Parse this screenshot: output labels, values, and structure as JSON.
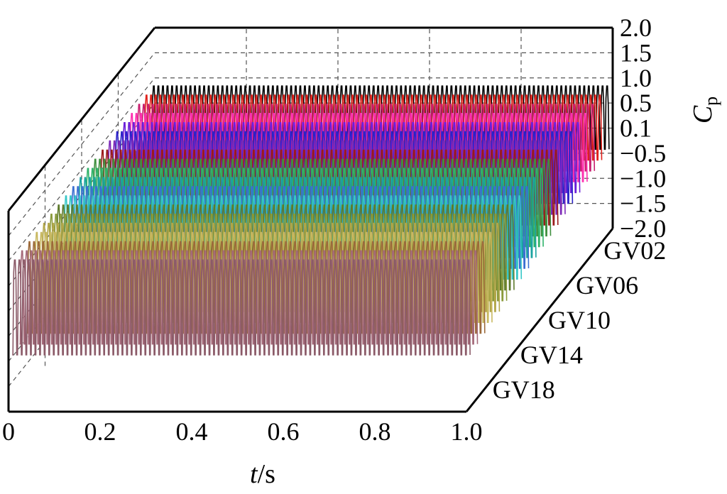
{
  "chart_data": {
    "type": "line",
    "title": "",
    "xlabel_italic": "t",
    "xlabel_unit": "/s",
    "zlabel_main": "C",
    "zlabel_sub": "p",
    "x_ticks": [
      "0",
      "0.2",
      "0.4",
      "0.6",
      "0.8",
      "1.0"
    ],
    "x_range": [
      0,
      1.0
    ],
    "z_ticks": [
      "2.0",
      "1.5",
      "1.0",
      "0.5",
      "0.1",
      "−0.5",
      "−1.0",
      "−1.5",
      "−2.0"
    ],
    "z_range": [
      -2.0,
      2.0
    ],
    "y_ticks": [
      "GV02",
      "GV06",
      "GV10",
      "GV14",
      "GV18"
    ],
    "grid": true,
    "waveform": {
      "cycles": 100,
      "mean": 0.3,
      "amplitude": 0.7,
      "note_shape": "periodic oscillation with sharp negative dips"
    },
    "series": [
      {
        "name": "",
        "color": "#000000"
      },
      {
        "name": "",
        "color": "#e0201a"
      },
      {
        "name": "",
        "color": "#c81d6e"
      },
      {
        "name": "",
        "color": "#ff2fb0"
      },
      {
        "name": "",
        "color": "#6a1fd8"
      },
      {
        "name": "",
        "color": "#2b22c8"
      },
      {
        "name": "",
        "color": "#7d2ab8"
      },
      {
        "name": "",
        "color": "#9a1a1a"
      },
      {
        "name": "",
        "color": "#3f8f3f"
      },
      {
        "name": "",
        "color": "#2fb36a"
      },
      {
        "name": "",
        "color": "#1aa3a0"
      },
      {
        "name": "",
        "color": "#3b6fd1"
      },
      {
        "name": "",
        "color": "#36c7c7"
      },
      {
        "name": "",
        "color": "#5e7a2c"
      },
      {
        "name": "",
        "color": "#8a9a3c"
      },
      {
        "name": "",
        "color": "#b2a648"
      },
      {
        "name": "",
        "color": "#c8b860"
      },
      {
        "name": "",
        "color": "#9c6a3a"
      },
      {
        "name": "",
        "color": "#a56a7a"
      },
      {
        "name": "",
        "color": "#8b5a68"
      }
    ]
  }
}
